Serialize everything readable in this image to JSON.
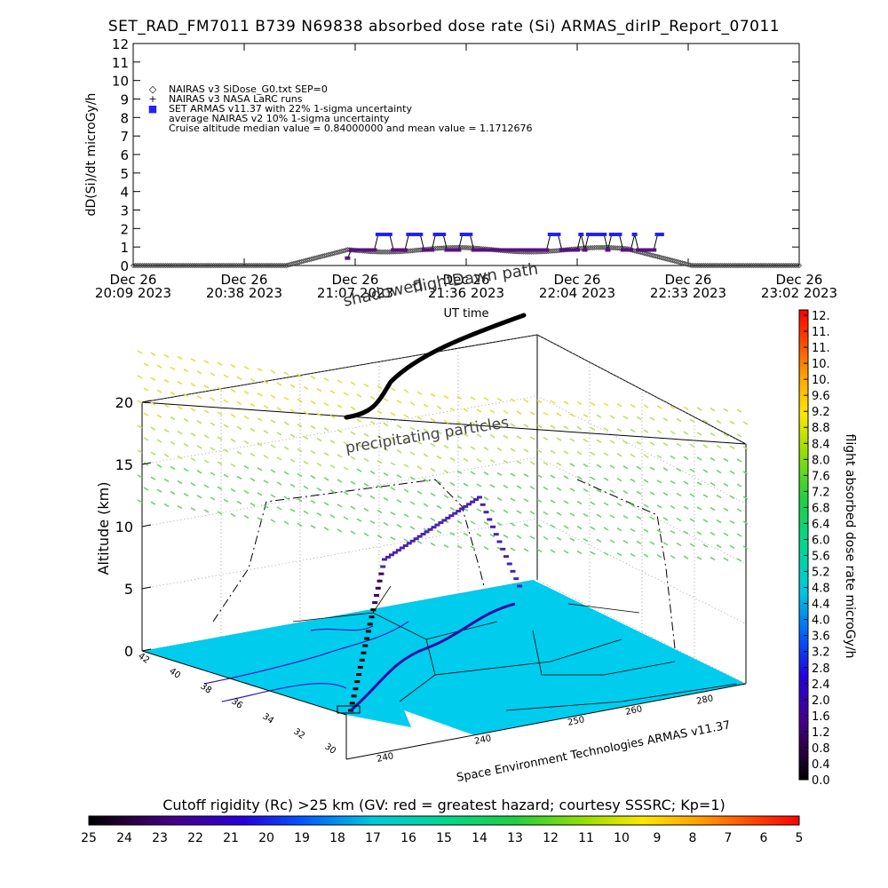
{
  "chart_data": [
    {
      "type": "scatter",
      "title": "SET_RAD_FM7011  B739 N69838 absorbed dose rate (Si) ARMAS_dirIP_Report_07011",
      "ylabel": "dD(Si)/dt microGy/h",
      "xlabel": "UT time",
      "ylim": [
        0,
        12
      ],
      "y_ticks": [
        "0",
        "1",
        "2",
        "3",
        "4",
        "5",
        "6",
        "7",
        "8",
        "9",
        "10",
        "11",
        "12"
      ],
      "x_ticks": [
        {
          "top": "Dec 26",
          "bottom": "20:09 2023"
        },
        {
          "top": "Dec 26",
          "bottom": "20:38 2023"
        },
        {
          "top": "Dec 26",
          "bottom": "21:07 2023"
        },
        {
          "top": "Dec 26",
          "bottom": "21:36 2023"
        },
        {
          "top": "Dec 26",
          "bottom": "22:04 2023"
        },
        {
          "top": "Dec 26",
          "bottom": "22:33 2023"
        },
        {
          "top": "Dec 26",
          "bottom": "23:02 2023"
        }
      ],
      "legend": [
        {
          "symbol": "◇",
          "label": "NAIRAS v3 SiDose_G0.txt SEP=0"
        },
        {
          "symbol": "+",
          "label": "NAIRAS v3 NASA LaRC runs"
        },
        {
          "symbol": "■",
          "label": "SET ARMAS v11.37 with 22% 1-sigma uncertainty"
        },
        {
          "symbol": "",
          "label": "average NAIRAS v2 10% 1-sigma uncertainty"
        },
        {
          "symbol": "",
          "label": "Cruise altitude median value = 0.84000000 and mean value = 1.1712676"
        }
      ],
      "legend_position": "top-left",
      "series": [
        {
          "name": "NAIRAS v3 SiDose_G0.txt SEP=0",
          "x": [
            0.0,
            0.5,
            1.0,
            1.5,
            2.0,
            2.5,
            3.0,
            3.5,
            4.0,
            4.5,
            5.0,
            5.5,
            6.0,
            6.5,
            7.0,
            7.5,
            8.0,
            8.5,
            9.0,
            9.5,
            10.0,
            10.5,
            11.0,
            11.5,
            12.0,
            12.5,
            13.0,
            13.5,
            14.0,
            14.5,
            15.0,
            15.5,
            16.0,
            16.5,
            17.0,
            17.5,
            18.0,
            18.5,
            19.0,
            19.5,
            20.0,
            20.5,
            21.0,
            21.5,
            22.0,
            22.5,
            23.0,
            23.5,
            24.0,
            24.5,
            25.0,
            25.5,
            26.0,
            26.5,
            27.0,
            27.5,
            28.0,
            28.5,
            29.0,
            29.5,
            30.0,
            30.5,
            31.0,
            31.5,
            32.0,
            32.5,
            33.0,
            33.5,
            34.0,
            34.5,
            35.0,
            35.5,
            36.0,
            36.5,
            37.0,
            37.5,
            38.0,
            38.5,
            39.0,
            39.5,
            40.0,
            40.5,
            41.0,
            41.5,
            42.0,
            42.5,
            43.0,
            43.5,
            44.0,
            44.5,
            45.0,
            45.5,
            46.0,
            46.5,
            47.0,
            47.5,
            48.0,
            48.5,
            49.0,
            49.5,
            50.0,
            50.5,
            51.0,
            51.5,
            52.0,
            52.5,
            53.0,
            53.5,
            54.0,
            54.5,
            55.0,
            55.5,
            56.0,
            56.5,
            57.0,
            57.5,
            58.0,
            58.5,
            59.0,
            59.5,
            60.0,
            60.5,
            61.0,
            61.5,
            62.0,
            62.5,
            63.0,
            63.5,
            64.0,
            64.5,
            65.0,
            65.5,
            66.0,
            66.5,
            67.0,
            67.5,
            68.0,
            68.5,
            69.0,
            69.5,
            70.0,
            70.5,
            71.0,
            71.5,
            72.0,
            72.5,
            73.0,
            73.5,
            74.0,
            74.5,
            75.0,
            75.5,
            76.0,
            76.5,
            77.0,
            77.5,
            78.0,
            78.5,
            79.0,
            79.5,
            80.0,
            80.5,
            81.0,
            81.5,
            82.0,
            82.5,
            83.0,
            83.5,
            84.0,
            84.5,
            85.0,
            85.5,
            86.0,
            86.5,
            87.0,
            87.5,
            88.0,
            88.5,
            89.0,
            89.5,
            90.0,
            90.5,
            91.0,
            91.5,
            92.0,
            92.5,
            93.0,
            93.5,
            94.0,
            94.5,
            95.0,
            95.5,
            96.0,
            96.5,
            97.0,
            97.5,
            98.0,
            98.5,
            99.0,
            99.5,
            100.0,
            100.5,
            101.0,
            101.5,
            102.0,
            102.5,
            103.0,
            103.5,
            104.0,
            104.5,
            105.0,
            105.5,
            106.0,
            106.5,
            107.0,
            107.5,
            108.0,
            108.5,
            109.0,
            109.5,
            110.0,
            110.5,
            111.0,
            111.5,
            112.0,
            112.5,
            113.0,
            113.5,
            114.0,
            114.5,
            115.0,
            115.5,
            116.0,
            116.5,
            117.0,
            117.5,
            118.0,
            118.5,
            119.0,
            119.5,
            120.0,
            120.5,
            121.0,
            121.5,
            122.0,
            122.5,
            123.0,
            123.5,
            124.0,
            124.5,
            125.0,
            125.5,
            126.0,
            126.5,
            127.0,
            127.5,
            128.0,
            128.5,
            129.0,
            129.5,
            130.0,
            130.5,
            131.0,
            131.5,
            132.0,
            132.5,
            133.0,
            133.5,
            134.0,
            134.5,
            135.0,
            135.5,
            136.0,
            136.5,
            137.0,
            137.5,
            138.0,
            138.5,
            139.0,
            139.5,
            140.0,
            140.5,
            141.0,
            141.5,
            142.0,
            142.5,
            143.0,
            143.5,
            144.0,
            144.5,
            145.0,
            145.5,
            146.0,
            146.5,
            147.0,
            147.5,
            148.0,
            148.5,
            149.0,
            149.5,
            150.0,
            150.5,
            151.0,
            151.5,
            152.0,
            152.5,
            153.0,
            153.5,
            154.0,
            154.5,
            155.0,
            155.5,
            156.0,
            156.5,
            157.0,
            157.5,
            158.0,
            158.5,
            159.0,
            159.5,
            160.0,
            160.5,
            161.0,
            161.5,
            162.0,
            162.5,
            163.0,
            163.5,
            164.0,
            164.5,
            165.0,
            165.5,
            166.0,
            166.5,
            167.0,
            167.5,
            168.0,
            168.5,
            169.0,
            169.5,
            170.0,
            170.5,
            171.0,
            171.5,
            172.0,
            172.5,
            173.0,
            173.5,
            174.0
          ],
          "y_profile": "diamonds near 0 before ~40 min after 20:09, ramp to ~0.8–1.0 during cruise 21:07–22:15, decline to 0 by ~22:40"
        },
        {
          "name": "SET ARMAS v11.37 with 22% 1-sigma uncertainty",
          "x": [
            56,
            57,
            58,
            59,
            60,
            61,
            62,
            63,
            64,
            65,
            66,
            67,
            68,
            69,
            70,
            71,
            72,
            73,
            74,
            75,
            76,
            77,
            78,
            79,
            80,
            81,
            82,
            83,
            84,
            85,
            86,
            87,
            88,
            89,
            90,
            91,
            92,
            93,
            94,
            95,
            96,
            97,
            98,
            99,
            100,
            101,
            102,
            103,
            104,
            105,
            106,
            107,
            108,
            109,
            110,
            111,
            112,
            113,
            114,
            115,
            116,
            117,
            118,
            119,
            120,
            121,
            122,
            123,
            124,
            125,
            126,
            127,
            128,
            129,
            130,
            131,
            132,
            133,
            134,
            135,
            136,
            137,
            138
          ],
          "y": [
            0.4,
            0.84,
            0.84,
            0.84,
            0.84,
            0.84,
            0.84,
            0.84,
            1.68,
            1.68,
            1.68,
            1.68,
            0.84,
            0.84,
            0.84,
            0.84,
            1.68,
            1.68,
            1.68,
            1.68,
            0.84,
            0.84,
            0.84,
            1.68,
            1.68,
            1.68,
            0.84,
            0.84,
            0.84,
            0.84,
            1.68,
            1.68,
            1.68,
            0.84,
            0.84,
            0.84,
            0.84,
            0.84,
            0.84,
            0.84,
            0.84,
            0.84,
            0.84,
            0.84,
            0.84,
            0.84,
            0.84,
            0.84,
            0.84,
            0.84,
            0.84,
            0.84,
            0.84,
            1.68,
            1.68,
            1.68,
            0.84,
            0.84,
            0.84,
            0.84,
            0.84,
            1.68,
            0.84,
            1.68,
            1.68,
            1.68,
            1.68,
            1.68,
            0.84,
            1.68,
            1.68,
            1.68,
            0.84,
            0.84,
            0.84,
            1.68,
            0.84,
            0.84,
            0.84,
            0.84,
            0.84,
            1.68,
            1.68
          ]
        }
      ]
    },
    {
      "type": "scatter3d",
      "ylabel": "Altitude (km)",
      "z_ticks": [
        "0",
        "5",
        "10",
        "15",
        "20"
      ],
      "lat_ticks": [
        "30",
        "32",
        "34",
        "36",
        "38",
        "40",
        "42"
      ],
      "lon_ticks": [
        "240",
        "240",
        "250",
        "260",
        "280"
      ],
      "annotations": [
        "Dawn path",
        "shadowed",
        "flight",
        "precipitating particles",
        "Space Environment Technologies ARMAS v11.37"
      ]
    },
    {
      "type": "colorbar",
      "orientation": "vertical",
      "label": "flight absorbed dose rate microGy/h",
      "ticks": [
        "12.",
        "11.",
        "11.",
        "10.",
        "10.",
        "9.6",
        "9.2",
        "8.8",
        "8.4",
        "8.0",
        "7.6",
        "7.2",
        "6.8",
        "6.4",
        "6.0",
        "5.6",
        "5.2",
        "4.8",
        "4.4",
        "4.0",
        "3.6",
        "3.2",
        "2.8",
        "2.4",
        "2.0",
        "1.6",
        "1.2",
        "0.8",
        "0.4",
        "0.0"
      ],
      "range": [
        0,
        12
      ]
    },
    {
      "type": "colorbar",
      "orientation": "horizontal",
      "label": "Cutoff rigidity (Rc) >25 km (GV: red = greatest hazard; courtesy SSSRC; Kp=1)",
      "ticks": [
        "25",
        "24",
        "23",
        "22",
        "21",
        "20",
        "19",
        "18",
        "17",
        "16",
        "15",
        "14",
        "13",
        "12",
        "11",
        "10",
        "9",
        "8",
        "7",
        "6",
        "5"
      ],
      "range": [
        25,
        5
      ]
    }
  ]
}
